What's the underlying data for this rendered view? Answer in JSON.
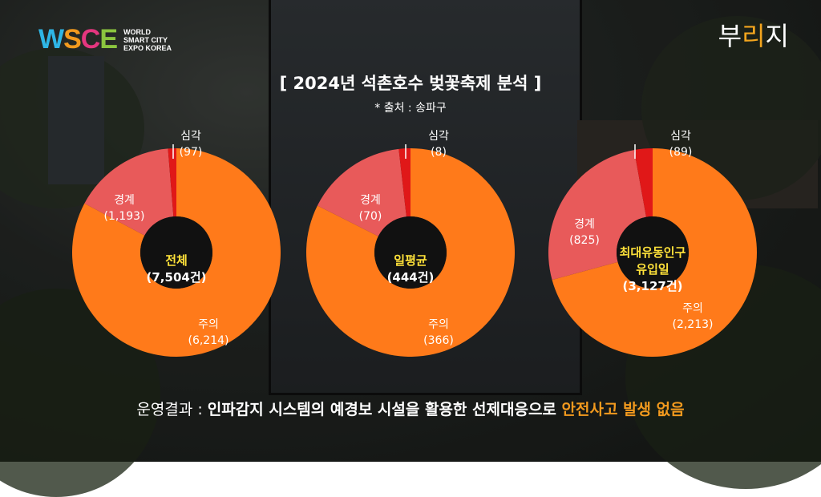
{
  "logo": {
    "mark": [
      "W",
      "S",
      "C",
      "E"
    ],
    "sub": [
      "WORLD",
      "SMART CITY",
      "EXPO KOREA"
    ]
  },
  "brand": {
    "text_1": "부",
    "text_2": "리",
    "text_3": "지"
  },
  "title": "[ 2024년 석촌호수 벚꽃축제 분석 ]",
  "source": "* 출처 : 송파구",
  "colors": {
    "주의": "#ff7a1a",
    "경계": "#e85a5a",
    "심각": "#e01818",
    "hole": "#111111"
  },
  "chart_data": [
    {
      "type": "pie",
      "center_label": [
        "전체",
        "(7,504건)"
      ],
      "labels": [
        "주의",
        "경계",
        "심각"
      ],
      "values": [
        6214,
        1193,
        97
      ],
      "value_labels": [
        "(6,214)",
        "(1,193)",
        "(97)"
      ]
    },
    {
      "type": "pie",
      "center_label": [
        "일평균",
        "(444건)"
      ],
      "labels": [
        "주의",
        "경계",
        "심각"
      ],
      "values": [
        366,
        70,
        8
      ],
      "value_labels": [
        "(366)",
        "(70)",
        "(8)"
      ]
    },
    {
      "type": "pie",
      "center_label": [
        "최대유동인구",
        "유입일",
        "(3,127건)"
      ],
      "labels": [
        "주의",
        "경계",
        "심각"
      ],
      "values": [
        2213,
        825,
        89
      ],
      "value_labels": [
        "(2,213)",
        "(825)",
        "(89)"
      ]
    }
  ],
  "footer": {
    "prefix": "운영결과 : ",
    "body": "인파감지 시스템의 예경보 시설을 활용한 선제대응으로 ",
    "accent": "안전사고 발생 없음"
  }
}
